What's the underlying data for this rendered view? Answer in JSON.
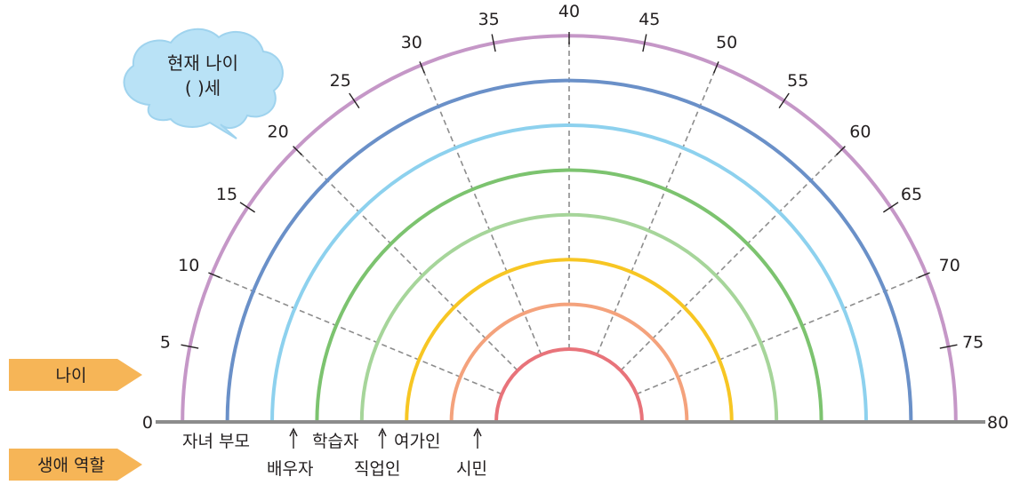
{
  "cloud": {
    "line1": "현재 나이",
    "line2": "(      )세",
    "fill": "#b9e2f6",
    "stroke": "#9fd3ee"
  },
  "tabs": {
    "age": "나이",
    "roles": "생애 역할",
    "fill": "#f6b557"
  },
  "ages": {
    "ticks": [
      0,
      5,
      10,
      15,
      20,
      25,
      30,
      35,
      40,
      45,
      50,
      55,
      60,
      65,
      70,
      75,
      80
    ],
    "dashed_at": [
      10,
      20,
      30,
      40,
      50,
      60,
      70
    ]
  },
  "arcs": [
    {
      "role": "시민",
      "color": "#e8737a"
    },
    {
      "role": "여가인",
      "color": "#f4a27c"
    },
    {
      "role": "직업인",
      "color": "#f7c623"
    },
    {
      "role": "학습자",
      "color": "#a6d59a"
    },
    {
      "role": "부모",
      "color": "#7cc36f"
    },
    {
      "role": "배우자",
      "color": "#8dd1ee"
    },
    {
      "role": "자녀",
      "color": "#6a90c8"
    },
    {
      "role": "outer",
      "color": "#c597c7"
    }
  ],
  "role_labels": {
    "child_parent": "자녀 부모",
    "spouse": "배우자",
    "learner": "학습자",
    "worker": "직업인",
    "leisure": "여가인",
    "citizen": "시민"
  },
  "colors": {
    "baseline": "#8c8c8c",
    "dashed": "#8c8c8c",
    "text": "#231f20"
  }
}
